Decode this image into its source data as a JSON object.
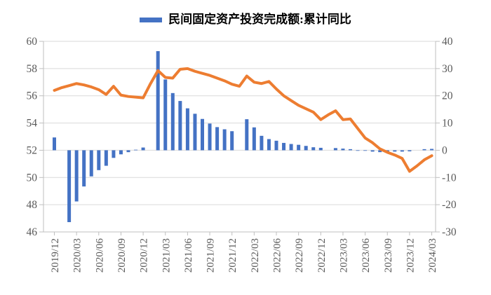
{
  "legend": {
    "series_label": "民间固定资产投资完成额:累计同比",
    "swatch_color": "#4472C4"
  },
  "colors": {
    "bar": "#4472C4",
    "line": "#ED7D31",
    "gridline": "#D9D9D9",
    "axis_line": "#BFBFBF",
    "tick_label": "#595959",
    "legend_text": "#000000",
    "background": "#FFFFFF"
  },
  "chart_data": {
    "type": "bar",
    "subtype": "combo-bar-line",
    "title": "",
    "xlabel": "",
    "ylabel": "",
    "grid": true,
    "legend_position": "top",
    "left_axis": {
      "min": 46,
      "max": 60,
      "step": 2
    },
    "right_axis": {
      "min": -30,
      "max": 40,
      "step": 10
    },
    "x_tick_every": 3,
    "x_tick_labels": [
      "2019/12",
      "2020/03",
      "2020/06",
      "2020/09",
      "2020/12",
      "2021/03",
      "2021/06",
      "2021/09",
      "2021/12",
      "2022/03",
      "2022/06",
      "2022/09",
      "2022/12",
      "2023/03",
      "2023/06",
      "2023/09",
      "2023/12",
      "2024/03"
    ],
    "categories": [
      "2019/12",
      "2020/01",
      "2020/02",
      "2020/03",
      "2020/04",
      "2020/05",
      "2020/06",
      "2020/07",
      "2020/08",
      "2020/09",
      "2020/10",
      "2020/11",
      "2020/12",
      "2021/01",
      "2021/02",
      "2021/03",
      "2021/04",
      "2021/05",
      "2021/06",
      "2021/07",
      "2021/08",
      "2021/09",
      "2021/10",
      "2021/11",
      "2021/12",
      "2022/01",
      "2022/02",
      "2022/03",
      "2022/04",
      "2022/05",
      "2022/06",
      "2022/07",
      "2022/08",
      "2022/09",
      "2022/10",
      "2022/11",
      "2022/12",
      "2023/01",
      "2023/02",
      "2023/03",
      "2023/04",
      "2023/05",
      "2023/06",
      "2023/07",
      "2023/08",
      "2023/09",
      "2023/10",
      "2023/11",
      "2023/12",
      "2024/01",
      "2024/02",
      "2024/03"
    ],
    "series": [
      {
        "name": "民间固定资产投资完成额:累计同比",
        "type": "bar",
        "axis": "right",
        "color": "#4472C4",
        "values": [
          4.7,
          null,
          -26.4,
          -18.8,
          -13.3,
          -9.6,
          -7.3,
          -5.7,
          -2.8,
          -1.5,
          -0.7,
          0.2,
          1.0,
          null,
          36.4,
          26.0,
          21.0,
          18.1,
          15.4,
          13.4,
          11.5,
          9.8,
          8.5,
          7.7,
          7.0,
          null,
          11.4,
          8.4,
          5.3,
          4.1,
          3.5,
          2.7,
          2.3,
          2.0,
          1.6,
          1.1,
          0.9,
          null,
          0.8,
          0.6,
          0.4,
          -0.1,
          -0.2,
          -0.5,
          -0.7,
          -0.6,
          -0.5,
          -0.5,
          -0.4,
          null,
          0.4,
          0.5
        ]
      },
      {
        "name": "",
        "type": "line",
        "axis": "left",
        "color": "#ED7D31",
        "values": [
          56.4,
          56.6,
          56.75,
          56.9,
          56.8,
          56.65,
          56.45,
          56.1,
          56.7,
          56.05,
          55.95,
          55.9,
          55.85,
          56.9,
          57.85,
          57.35,
          57.3,
          57.95,
          58.0,
          57.8,
          57.65,
          57.5,
          57.3,
          57.1,
          56.85,
          56.7,
          57.45,
          57.0,
          56.9,
          57.05,
          56.5,
          56.0,
          55.65,
          55.3,
          55.05,
          54.8,
          54.25,
          54.6,
          54.9,
          54.25,
          54.3,
          53.6,
          52.9,
          52.55,
          52.1,
          51.85,
          51.65,
          51.4,
          50.45,
          50.85,
          51.3,
          51.6
        ]
      }
    ]
  }
}
